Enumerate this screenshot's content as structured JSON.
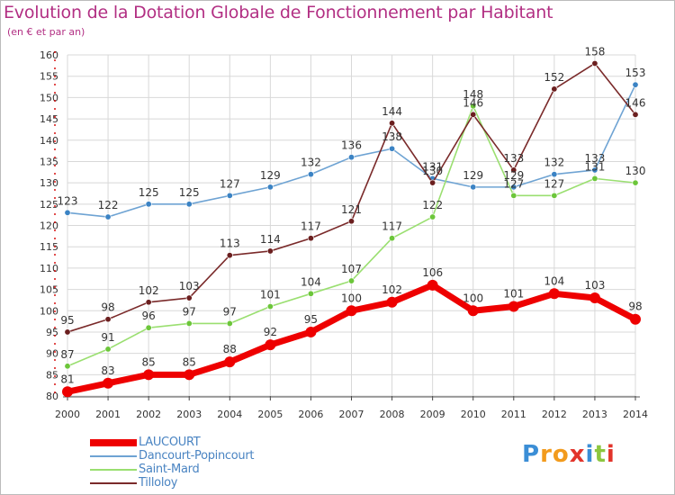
{
  "title": "Evolution de la Dotation Globale de Fonctionnement par Habitant",
  "subtitle": "(en € et par an)",
  "brand": {
    "letters": [
      "P",
      "r",
      "o",
      "x",
      "i",
      "t",
      "i"
    ],
    "colors": [
      "#3b8ed6",
      "#f29b1d",
      "#f29b1d",
      "#e2342b",
      "#3b8ed6",
      "#8cc63f",
      "#e2342b"
    ]
  },
  "colors": {
    "title": "#b22f83",
    "axis": "#d40000",
    "grid": "#d8d8d8",
    "plot_bg": "#ffffff"
  },
  "chart_data": {
    "type": "line",
    "x": [
      "2000",
      "2001",
      "2002",
      "2003",
      "2004",
      "2005",
      "2006",
      "2007",
      "2008",
      "2009",
      "2010",
      "2011",
      "2012",
      "2013",
      "2014"
    ],
    "ylim": [
      80,
      160
    ],
    "yticks": [
      "80",
      "85",
      "90",
      "95",
      "100",
      "105",
      "110",
      "115",
      "120",
      "125",
      "130",
      "135",
      "140",
      "145",
      "150",
      "155",
      "160"
    ],
    "grid": true,
    "legend_position": "bottom-left",
    "series": [
      {
        "name": "LAUCOURT",
        "color": "#ee0000",
        "marker": "#ee0000",
        "emphasis": true,
        "values": [
          81,
          83,
          85,
          85,
          88,
          92,
          95,
          100,
          102,
          106,
          100,
          101,
          104,
          103,
          98
        ],
        "labels": [
          "81",
          "83",
          "85",
          "85",
          "88",
          "92",
          "95",
          "100",
          "102",
          "106",
          "100",
          "101",
          "104",
          "103",
          "98"
        ]
      },
      {
        "name": "Dancourt-Popincourt",
        "color": "#6ea3d3",
        "marker": "#3b83c4",
        "values": [
          123,
          122,
          125,
          125,
          127,
          129,
          132,
          136,
          138,
          131,
          129,
          129,
          132,
          133,
          153
        ],
        "labels": [
          "123",
          "122",
          "125",
          "125",
          "127",
          "129",
          "132",
          "136",
          "138",
          "131",
          "129",
          "129",
          "132",
          "133",
          "153"
        ]
      },
      {
        "name": "Saint-Mard",
        "color": "#9adf70",
        "marker": "#6cc63a",
        "values": [
          87,
          91,
          96,
          97,
          97,
          101,
          104,
          107,
          117,
          122,
          148,
          127,
          127,
          131,
          130
        ],
        "labels": [
          "87",
          "91",
          "96",
          "97",
          "97",
          "101",
          "104",
          "107",
          "117",
          "122",
          "148",
          "127",
          "127",
          "131",
          "130"
        ]
      },
      {
        "name": "Tilloloy",
        "color": "#7a2a2a",
        "marker": "#6b1f1f",
        "values": [
          95,
          98,
          102,
          103,
          113,
          114,
          117,
          121,
          144,
          130,
          146,
          133,
          152,
          158,
          146
        ],
        "labels": [
          "95",
          "98",
          "102",
          "103",
          "113",
          "114",
          "117",
          "121",
          "144",
          "130",
          "146",
          "133",
          "152",
          "158",
          "146"
        ]
      }
    ]
  }
}
